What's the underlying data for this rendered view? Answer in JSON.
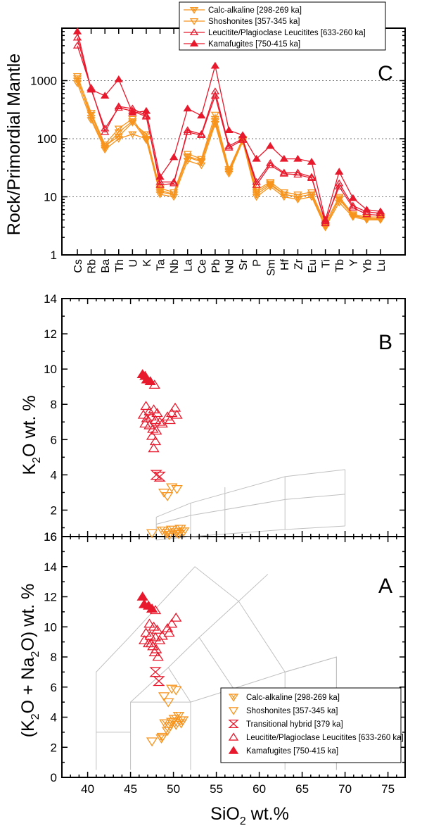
{
  "chart_data": [
    {
      "panel": "C",
      "type": "line",
      "ylabel": "Rock/Primordial Mantle",
      "ylim": [
        1,
        8000
      ],
      "yscale": "log",
      "ytick_labels": [
        "1",
        "10",
        "100",
        "1000"
      ],
      "grid": "dotted horizontal at 10, 100, 1000",
      "categories": [
        "Cs",
        "Rb",
        "Ba",
        "Th",
        "U",
        "K",
        "Ta",
        "Nb",
        "La",
        "Ce",
        "Pb",
        "Nd",
        "Sr",
        "P",
        "Sm",
        "Hf",
        "Zr",
        "Eu",
        "Ti",
        "Tb",
        "Y",
        "Yb",
        "Lu"
      ],
      "legend_position": "top",
      "series": [
        {
          "name": "Calc-alkaline [298-269 ka]",
          "marker": "tri-down-x",
          "color": "#f7941d",
          "values": [
            900,
            210,
            65,
            100,
            120,
            100,
            11,
            10,
            42,
            35,
            180,
            25,
            90,
            10,
            15,
            10,
            9,
            10,
            3,
            8,
            4.5,
            4,
            4
          ]
        },
        {
          "name": "Calc-alkaline [298-269 ka]",
          "marker": "tri-down-x",
          "color": "#f7941d",
          "values": [
            1000,
            260,
            75,
            110,
            190,
            120,
            13,
            11,
            50,
            42,
            220,
            28,
            95,
            12,
            17,
            11,
            10,
            11,
            3.2,
            9,
            4.8,
            4.3,
            4.2
          ]
        },
        {
          "name": "Shoshonites [357-345 ka]",
          "marker": "tri-down-open",
          "color": "#f7941d",
          "values": [
            1200,
            280,
            80,
            150,
            220,
            100,
            14,
            12,
            55,
            45,
            260,
            30,
            100,
            13,
            18,
            12,
            11,
            12,
            3.5,
            10,
            5,
            4.5,
            4.5
          ]
        },
        {
          "name": "Shoshonites [357-345 ka]",
          "marker": "tri-down-open",
          "color": "#f7941d",
          "values": [
            1100,
            230,
            70,
            130,
            200,
            95,
            12,
            11,
            48,
            40,
            200,
            27,
            95,
            11,
            16,
            11,
            10,
            11,
            3.0,
            9.5,
            4.7,
            4.2,
            4.1
          ]
        },
        {
          "name": "Leucitite/Plagioclase Leucitites [633-260 ka]",
          "marker": "tri-up-open",
          "color": "#e8192c",
          "values": [
            4000,
            750,
            130,
            360,
            330,
            250,
            16,
            17,
            140,
            120,
            650,
            75,
            100,
            18,
            38,
            26,
            26,
            22,
            3.5,
            17,
            7,
            5.5,
            5.2
          ]
        },
        {
          "name": "Leucitite/Plagioclase Leucitites [633-260 ka]",
          "marker": "tri-up-open",
          "color": "#e8192c",
          "values": [
            5500,
            700,
            150,
            340,
            300,
            240,
            18,
            18,
            130,
            115,
            550,
            70,
            95,
            16,
            35,
            25,
            24,
            21,
            3.8,
            15,
            6.5,
            5,
            4.8
          ]
        },
        {
          "name": "Kamafugites [750-415 ka]",
          "marker": "tri-up-filled",
          "color": "#e8192c",
          "values": [
            7000,
            700,
            550,
            1050,
            280,
            300,
            22,
            48,
            330,
            250,
            1800,
            140,
            115,
            45,
            75,
            45,
            45,
            40,
            4,
            27,
            9.5,
            6,
            5.6
          ]
        }
      ]
    },
    {
      "panel": "B",
      "type": "scatter",
      "xlabel": "SiO2 wt.%",
      "ylabel": "K2O wt. %",
      "xlim": [
        37,
        77
      ],
      "ylim": [
        0.5,
        14
      ],
      "ytick_labels": [
        "2",
        "4",
        "6",
        "8",
        "10",
        "12",
        "14"
      ],
      "series": [
        {
          "name": "Kamafugites [750-415 ka]",
          "marker": "tri-up-filled",
          "color": "#e8192c",
          "points": [
            [
              46.4,
              9.7
            ],
            [
              46.7,
              9.6
            ],
            [
              46.9,
              9.4
            ],
            [
              47.3,
              9.3
            ]
          ]
        },
        {
          "name": "Leucitite/Plagioclase Leucitites [633-260 ka]",
          "marker": "tri-up-open",
          "color": "#e8192c",
          "points": [
            [
              47.8,
              9.1
            ],
            [
              46.8,
              7.9
            ],
            [
              47.2,
              7.6
            ],
            [
              47.7,
              7.7
            ],
            [
              48.1,
              7.5
            ],
            [
              46.5,
              7.4
            ],
            [
              46.9,
              7.2
            ],
            [
              47.4,
              7.3
            ],
            [
              47.9,
              7.1
            ],
            [
              48.4,
              7.0
            ],
            [
              46.7,
              6.9
            ],
            [
              47.2,
              6.8
            ],
            [
              47.6,
              6.6
            ],
            [
              48.0,
              6.5
            ],
            [
              48.7,
              6.9
            ],
            [
              49.3,
              7.3
            ],
            [
              49.8,
              7.5
            ],
            [
              50.2,
              7.8
            ],
            [
              49.6,
              7.1
            ],
            [
              50.4,
              7.4
            ],
            [
              47.5,
              6.2
            ],
            [
              47.9,
              5.9
            ],
            [
              47.7,
              5.5
            ]
          ]
        },
        {
          "name": "Transitional hybrid [379 ka]",
          "marker": "hourglass",
          "color": "#e8192c",
          "points": [
            [
              48.0,
              4.0
            ],
            [
              48.4,
              3.9
            ]
          ]
        },
        {
          "name": "Shoshonites [357-345 ka]",
          "marker": "tri-down-open",
          "color": "#f7941d",
          "points": [
            [
              48.9,
              3.0
            ],
            [
              49.3,
              2.8
            ],
            [
              49.8,
              3.3
            ],
            [
              50.4,
              3.2
            ],
            [
              47.5,
              0.7
            ]
          ]
        },
        {
          "name": "Calc-alkaline [298-269 ka]",
          "marker": "tri-down-x",
          "color": "#f7941d",
          "points": [
            [
              48.7,
              0.85
            ],
            [
              49.2,
              0.7
            ],
            [
              49.8,
              0.9
            ],
            [
              50.3,
              0.75
            ],
            [
              50.8,
              0.95
            ],
            [
              51.2,
              0.8
            ],
            [
              49.5,
              0.6
            ],
            [
              50.6,
              0.65
            ]
          ]
        }
      ]
    },
    {
      "panel": "A",
      "type": "scatter",
      "xlabel": "SiO2 wt.%",
      "ylabel": "(K2O + Na2O) wt. %",
      "xlim": [
        37,
        77
      ],
      "ylim": [
        0,
        16
      ],
      "xtick_labels": [
        "40",
        "45",
        "50",
        "55",
        "60",
        "65",
        "70",
        "75"
      ],
      "ytick_labels": [
        "0",
        "2",
        "4",
        "6",
        "8",
        "10",
        "12",
        "14",
        "16"
      ],
      "legend_position": "bottom-right",
      "series": [
        {
          "name": "Kamafugites [750-415 ka]",
          "marker": "tri-up-filled",
          "color": "#e8192c",
          "points": [
            [
              46.4,
              12.0
            ],
            [
              46.6,
              11.5
            ],
            [
              47.1,
              11.4
            ],
            [
              47.5,
              11.2
            ]
          ]
        },
        {
          "name": "Leucitite/Plagioclase Leucitites [633-260 ka]",
          "marker": "tri-up-open",
          "color": "#e8192c",
          "points": [
            [
              47.9,
              11.1
            ],
            [
              47.2,
              10.2
            ],
            [
              47.7,
              10.0
            ],
            [
              48.1,
              9.8
            ],
            [
              46.8,
              9.6
            ],
            [
              47.3,
              9.4
            ],
            [
              47.9,
              9.3
            ],
            [
              48.4,
              9.1
            ],
            [
              46.6,
              9.1
            ],
            [
              47.1,
              8.9
            ],
            [
              47.6,
              8.7
            ],
            [
              48.0,
              8.5
            ],
            [
              48.7,
              9.4
            ],
            [
              49.3,
              9.9
            ],
            [
              49.8,
              10.2
            ],
            [
              50.3,
              10.6
            ],
            [
              49.5,
              9.6
            ],
            [
              47.8,
              8.3
            ],
            [
              47.4,
              8.9
            ],
            [
              48.2,
              8.0
            ]
          ]
        },
        {
          "name": "Transitional hybrid [379 ka]",
          "marker": "hourglass",
          "color": "#e8192c",
          "points": [
            [
              47.9,
              7.0
            ],
            [
              48.3,
              6.4
            ]
          ]
        },
        {
          "name": "Shoshonites [357-345 ka]",
          "marker": "tri-down-open",
          "color": "#f7941d",
          "points": [
            [
              48.9,
              5.4
            ],
            [
              49.4,
              5.0
            ],
            [
              49.8,
              5.9
            ],
            [
              50.3,
              5.8
            ],
            [
              47.5,
              2.4
            ],
            [
              48.7,
              2.7
            ]
          ]
        },
        {
          "name": "Calc-alkaline [298-269 ka]",
          "marker": "tri-down-x",
          "color": "#f7941d",
          "points": [
            [
              49.0,
              3.6
            ],
            [
              49.6,
              3.4
            ],
            [
              50.1,
              3.9
            ],
            [
              50.6,
              4.1
            ],
            [
              51.1,
              3.8
            ],
            [
              49.3,
              3.1
            ],
            [
              50.3,
              3.5
            ],
            [
              50.9,
              3.6
            ],
            [
              48.6,
              2.6
            ],
            [
              49.8,
              3.7
            ]
          ]
        }
      ]
    }
  ],
  "panel_letters": {
    "c": "C",
    "b": "B",
    "a": "A"
  },
  "legend_top": [
    {
      "label": "Calc-alkaline [298-269 ka]",
      "marker": "tri-down-x",
      "color": "#f7941d"
    },
    {
      "label": "Shoshonites [357-345 ka]",
      "marker": "tri-down-open",
      "color": "#f7941d"
    },
    {
      "label": "Leucitite/Plagioclase Leucitites [633-260 ka]",
      "marker": "tri-up-open",
      "color": "#e8192c"
    },
    {
      "label": "Kamafugites [750-415 ka]",
      "marker": "tri-up-filled",
      "color": "#e8192c"
    }
  ],
  "legend_bottom": [
    {
      "label": "Calc-alkaline [298-269 ka]",
      "marker": "tri-down-x",
      "color": "#f7941d"
    },
    {
      "label": "Shoshonites [357-345 ka]",
      "marker": "tri-down-open",
      "color": "#f7941d"
    },
    {
      "label": "Transitional hybrid [379 ka]",
      "marker": "hourglass",
      "color": "#e8192c"
    },
    {
      "label": "Leucitite/Plagioclase Leucitites [633-260 ka]",
      "marker": "tri-up-open",
      "color": "#e8192c"
    },
    {
      "label": "Kamafugites [750-415 ka]",
      "marker": "tri-up-filled",
      "color": "#e8192c"
    }
  ],
  "axis_labels": {
    "c_y": "Rock/Primordial Mantle",
    "b_y_main": "K",
    "b_y_sub": "2",
    "b_y_rest": "O   wt. %",
    "a_y_1": "(K",
    "a_y_2": "2",
    "a_y_3": "O + Na",
    "a_y_4": "2",
    "a_y_5": "O)   wt. %",
    "x_main": "SiO",
    "x_sub": "2",
    "x_rest": "  wt.%"
  },
  "colors": {
    "orange": "#f7941d",
    "red": "#e8192c",
    "grid_lines": "#c0c0c0"
  },
  "tas_fields": [
    [
      [
        41,
        0.5
      ],
      [
        41,
        7
      ],
      [
        45,
        9.4
      ],
      [
        48.4,
        11.5
      ],
      [
        52.5,
        14
      ],
      [
        57.6,
        11.7
      ],
      [
        63,
        7
      ],
      [
        63,
        0.5
      ]
    ],
    [
      [
        45,
        0.5
      ],
      [
        45,
        5
      ],
      [
        52,
        5
      ],
      [
        52,
        0.5
      ]
    ],
    [
      [
        45,
        5
      ],
      [
        49.4,
        7.3
      ],
      [
        53,
        9.3
      ],
      [
        57.6,
        11.7
      ]
    ],
    [
      [
        52,
        5
      ],
      [
        57,
        5.9
      ],
      [
        63,
        7
      ],
      [
        69,
        8
      ],
      [
        69,
        0.5
      ]
    ],
    [
      [
        49.4,
        7.3
      ],
      [
        52,
        5
      ]
    ],
    [
      [
        53,
        9.3
      ],
      [
        57,
        5.9
      ]
    ],
    [
      [
        57.6,
        11.7
      ],
      [
        61,
        13.5
      ]
    ],
    [
      [
        63,
        7
      ],
      [
        69,
        8
      ],
      [
        69,
        0.5
      ]
    ],
    [
      [
        41,
        3
      ],
      [
        45,
        3
      ]
    ]
  ],
  "k2o_fields": [
    [
      [
        48,
        1.6
      ],
      [
        52,
        2.4
      ],
      [
        63,
        3.9
      ],
      [
        70,
        4.3
      ]
    ],
    [
      [
        48,
        1.2
      ],
      [
        52,
        1.7
      ],
      [
        63,
        2.6
      ],
      [
        70,
        2.9
      ]
    ],
    [
      [
        48,
        0.3
      ],
      [
        52,
        0.5
      ],
      [
        63,
        0.9
      ],
      [
        70,
        1.1
      ]
    ],
    [
      [
        48,
        0.5
      ],
      [
        48,
        1.6
      ]
    ],
    [
      [
        52,
        0.5
      ],
      [
        52,
        2.4
      ]
    ],
    [
      [
        56,
        0.6
      ],
      [
        56,
        3.3
      ]
    ],
    [
      [
        63,
        0.9
      ],
      [
        63,
        3.9
      ]
    ],
    [
      [
        70,
        1.1
      ],
      [
        70,
        4.3
      ]
    ]
  ]
}
